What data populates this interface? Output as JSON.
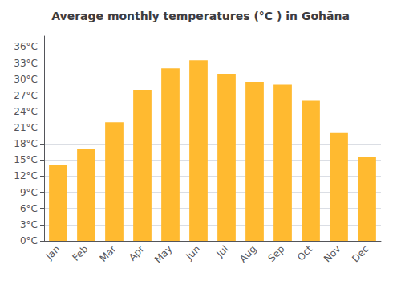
{
  "chart_data": {
    "type": "bar",
    "title": "Average monthly temperatures (°C ) in Gohāna",
    "categories": [
      "Jan",
      "Feb",
      "Mar",
      "Apr",
      "May",
      "Jun",
      "Jul",
      "Aug",
      "Sep",
      "Oct",
      "Nov",
      "Dec"
    ],
    "values": [
      14,
      17,
      22,
      28,
      32,
      33.5,
      31,
      29.5,
      29,
      26,
      20,
      15.5
    ],
    "color": "#FFBA30",
    "ylim": [
      0,
      38
    ],
    "yticks": [
      {
        "value": 0,
        "label": "0°C"
      },
      {
        "value": 3,
        "label": "3°C"
      },
      {
        "value": 6,
        "label": "6°C"
      },
      {
        "value": 9,
        "label": "9°C"
      },
      {
        "value": 12,
        "label": "12°C"
      },
      {
        "value": 15,
        "label": "15°C"
      },
      {
        "value": 18,
        "label": "18°C"
      },
      {
        "value": 21,
        "label": "21°C"
      },
      {
        "value": 24,
        "label": "24°C"
      },
      {
        "value": 27,
        "label": "27°C"
      },
      {
        "value": 30,
        "label": "30°C"
      },
      {
        "value": 33,
        "label": "33°C"
      },
      {
        "value": 36,
        "label": "36°C"
      }
    ],
    "grid": true
  }
}
